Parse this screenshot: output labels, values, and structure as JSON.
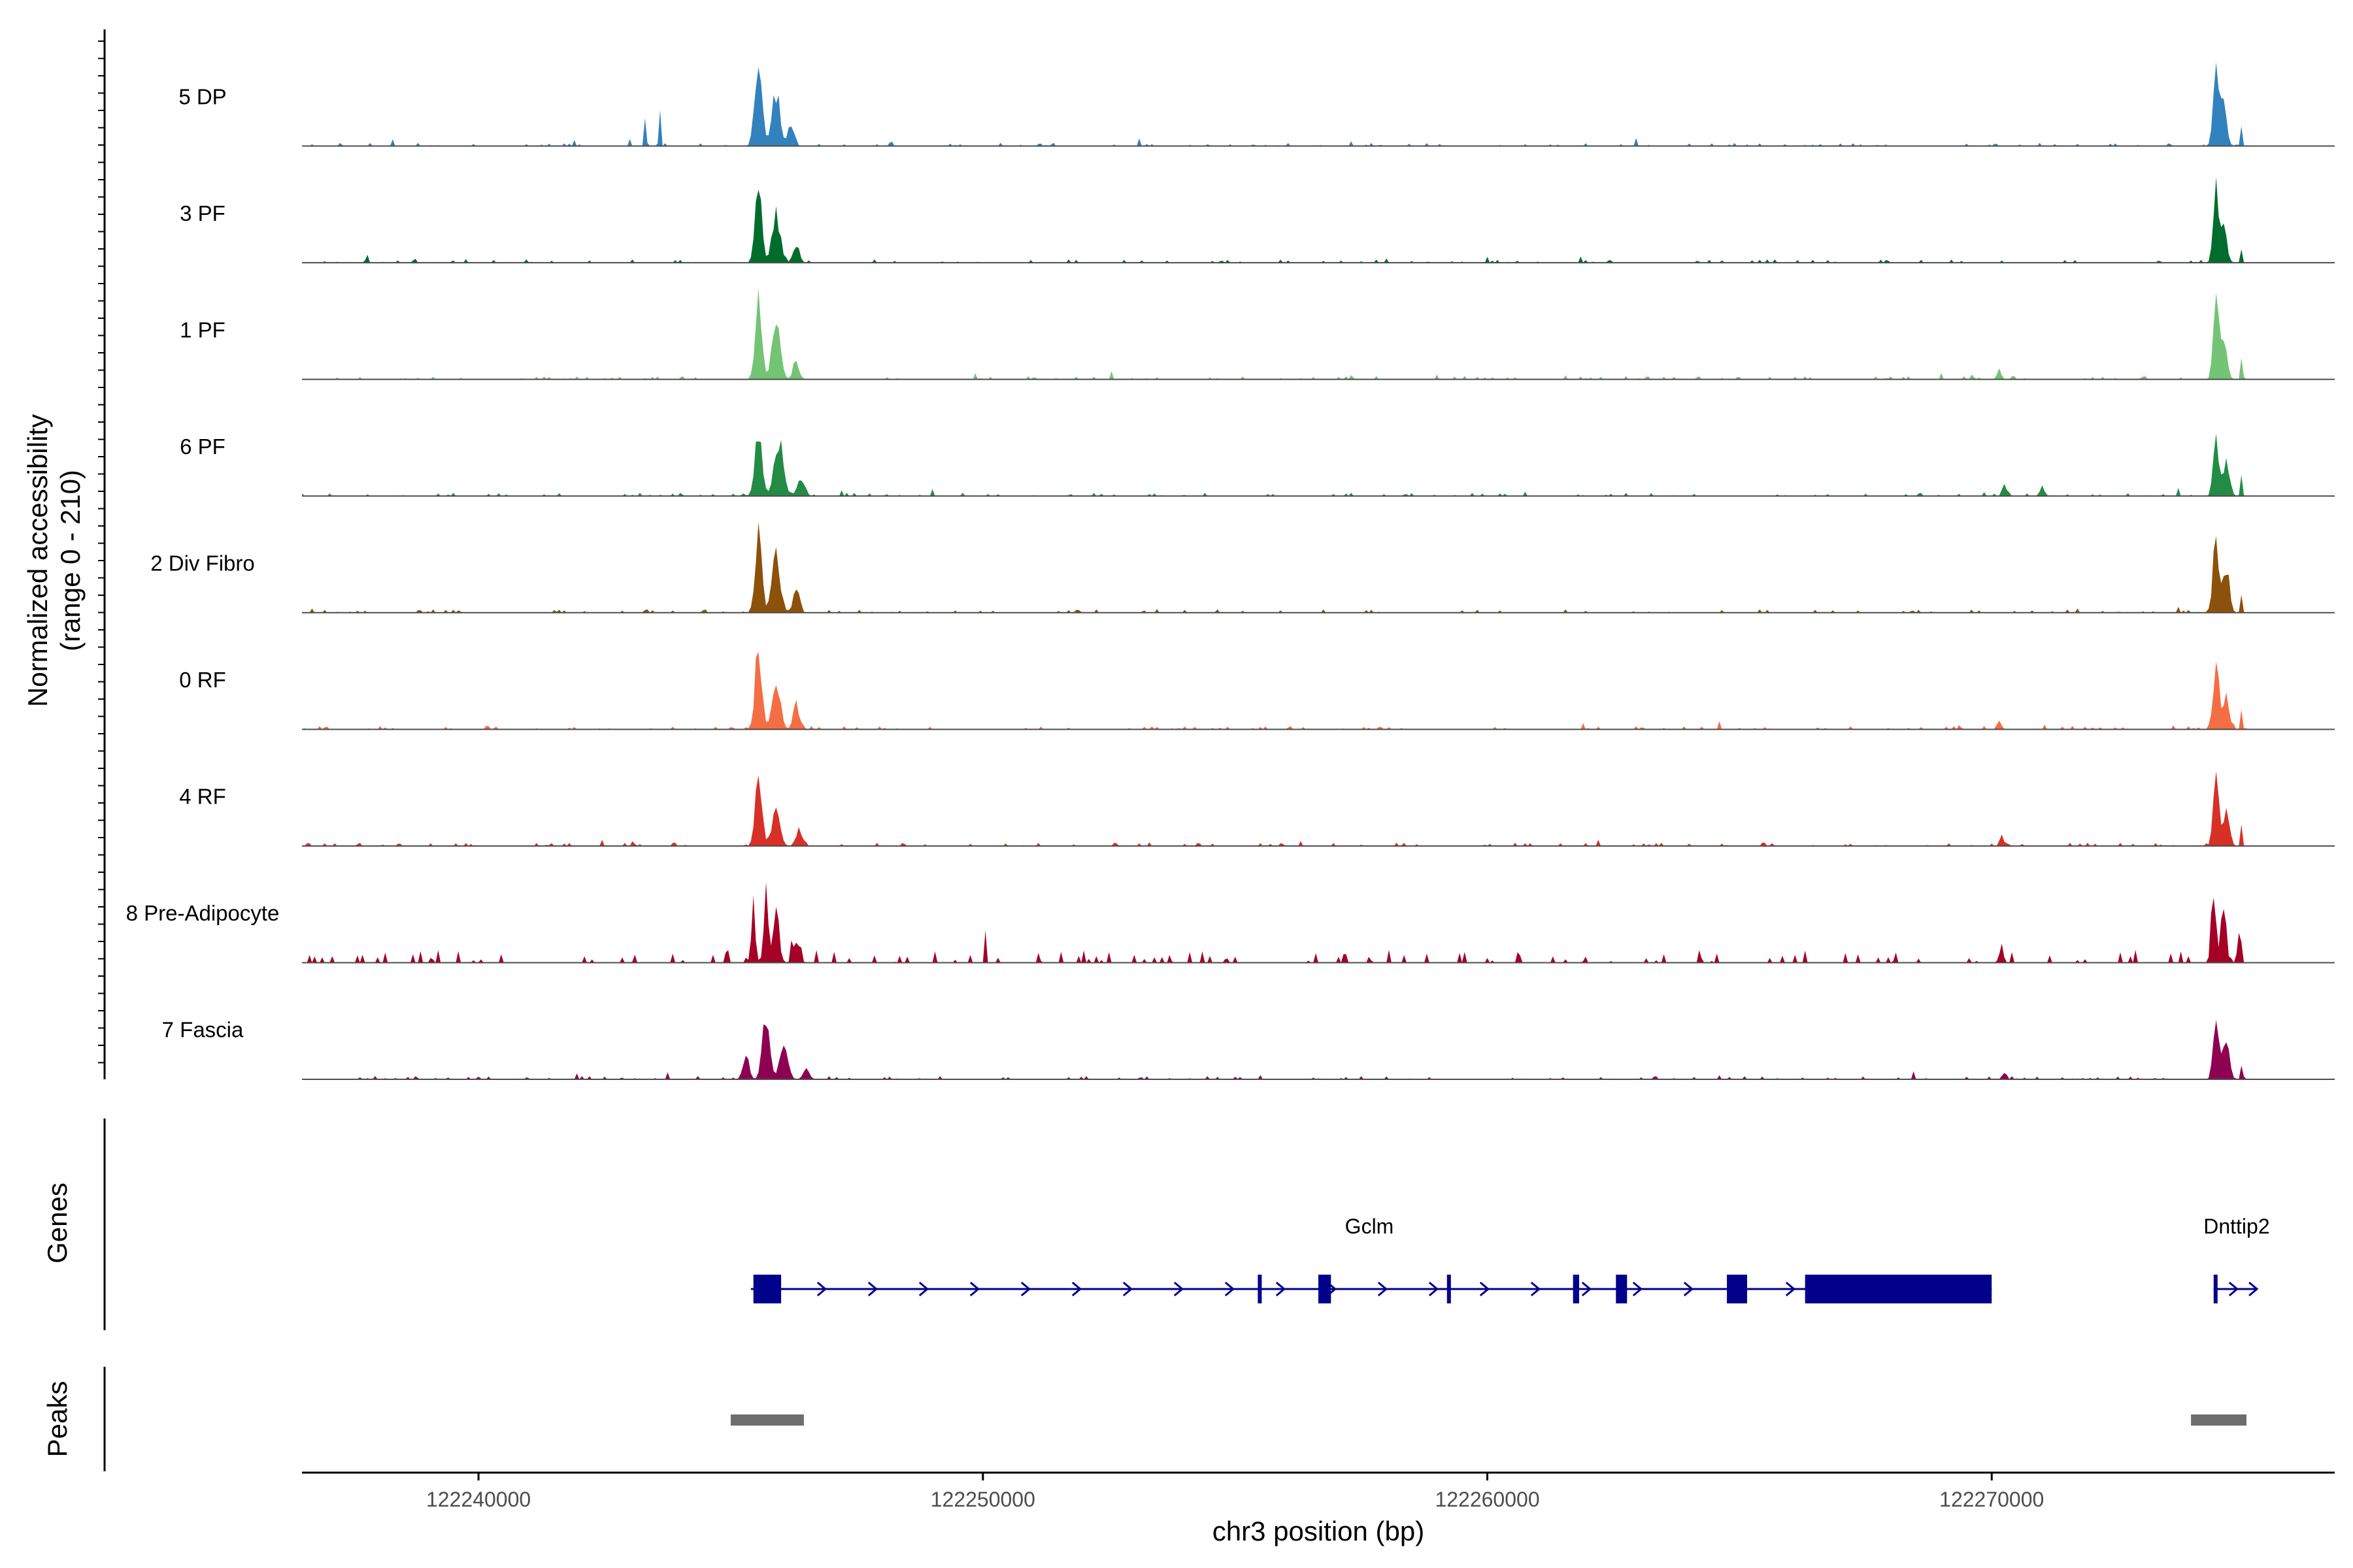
{
  "chart_data": {
    "type": "area",
    "title": "",
    "xlabel": "chr3 position (bp)",
    "ylabel_line1": "Normalized accessibility",
    "ylabel_line2": "(range 0 - 210)",
    "y_range": [
      0,
      210
    ],
    "xlim": [
      122236500,
      122276800
    ],
    "x_ticks": [
      122240000,
      122250000,
      122260000,
      122270000
    ],
    "x_tick_labels": [
      "122240000",
      "122250000",
      "122260000",
      "122270000"
    ],
    "genes_panel_label": "Genes",
    "peaks_panel_label": "Peaks",
    "tracks": [
      {
        "name": "5 DP",
        "color": "#3182bd",
        "peaks": [
          [
            122243300,
            70,
            18
          ],
          [
            122243600,
            90,
            10
          ],
          [
            122245550,
            210,
            70
          ],
          [
            122245900,
            130,
            80
          ],
          [
            122246200,
            55,
            60
          ],
          [
            122274450,
            210,
            55
          ],
          [
            122274600,
            110,
            60
          ],
          [
            122274950,
            60,
            20
          ]
        ]
      },
      {
        "name": "3 PF",
        "color": "#006d2c",
        "peaks": [
          [
            122245550,
            200,
            65
          ],
          [
            122245900,
            120,
            80
          ],
          [
            122246300,
            50,
            60
          ],
          [
            122274450,
            180,
            55
          ],
          [
            122274600,
            100,
            60
          ],
          [
            122274950,
            40,
            20
          ]
        ]
      },
      {
        "name": "1 PF",
        "color": "#74c476",
        "peaks": [
          [
            122245550,
            200,
            65
          ],
          [
            122245900,
            150,
            80
          ],
          [
            122246300,
            45,
            60
          ],
          [
            122270150,
            25,
            40
          ],
          [
            122274450,
            200,
            55
          ],
          [
            122274600,
            110,
            60
          ],
          [
            122274950,
            40,
            20
          ]
        ]
      },
      {
        "name": "6 PF",
        "color": "#238b45",
        "peaks": [
          [
            122245550,
            150,
            70
          ],
          [
            122245950,
            140,
            90
          ],
          [
            122246400,
            45,
            70
          ],
          [
            122270250,
            35,
            40
          ],
          [
            122271000,
            20,
            50
          ],
          [
            122274450,
            155,
            55
          ],
          [
            122274650,
            90,
            60
          ],
          [
            122274950,
            55,
            20
          ]
        ]
      },
      {
        "name": "2 Div Fibro",
        "color": "#8c510a",
        "peaks": [
          [
            122245550,
            200,
            65
          ],
          [
            122245900,
            140,
            80
          ],
          [
            122246300,
            60,
            60
          ],
          [
            122274450,
            200,
            55
          ],
          [
            122274650,
            110,
            60
          ],
          [
            122274950,
            50,
            20
          ]
        ]
      },
      {
        "name": "0 RF",
        "color": "#f46d43",
        "peaks": [
          [
            122245550,
            210,
            65
          ],
          [
            122245900,
            130,
            80
          ],
          [
            122246300,
            65,
            60
          ],
          [
            122270150,
            22,
            40
          ],
          [
            122274450,
            170,
            55
          ],
          [
            122274650,
            80,
            60
          ],
          [
            122274950,
            45,
            20
          ]
        ]
      },
      {
        "name": "4 RF",
        "color": "#d73027",
        "peaks": [
          [
            122245550,
            175,
            65
          ],
          [
            122245900,
            100,
            80
          ],
          [
            122246350,
            40,
            60
          ],
          [
            122270200,
            25,
            40
          ],
          [
            122274450,
            170,
            55
          ],
          [
            122274650,
            90,
            60
          ],
          [
            122274950,
            50,
            20
          ]
        ]
      },
      {
        "name": "8 Pre-Adipocyte",
        "color": "#a50026",
        "peaks": [
          [
            122245450,
            150,
            40
          ],
          [
            122245700,
            210,
            40
          ],
          [
            122245900,
            130,
            60
          ],
          [
            122246300,
            60,
            60
          ],
          [
            122270200,
            35,
            40
          ],
          [
            122274400,
            200,
            45
          ],
          [
            122274600,
            150,
            50
          ],
          [
            122274900,
            80,
            30
          ]
        ]
      },
      {
        "name": "7 Fascia",
        "color": "#8e0152",
        "peaks": [
          [
            122245300,
            60,
            60
          ],
          [
            122245700,
            160,
            70
          ],
          [
            122246050,
            80,
            80
          ],
          [
            122246500,
            30,
            60
          ],
          [
            122270250,
            20,
            40
          ],
          [
            122274450,
            180,
            55
          ],
          [
            122274650,
            100,
            60
          ],
          [
            122274950,
            40,
            20
          ]
        ]
      }
    ],
    "genes": [
      {
        "name": "Gclm",
        "start": 122245400,
        "end": 122270000,
        "strand": "+",
        "exons": [
          [
            122245450,
            122246000
          ],
          [
            122255450,
            122255520
          ],
          [
            122256650,
            122256900
          ],
          [
            122259200,
            122259270
          ],
          [
            122261700,
            122261820
          ],
          [
            122262550,
            122262770
          ],
          [
            122264750,
            122265150
          ],
          [
            122266300,
            122270000
          ]
        ]
      },
      {
        "name": "Dnttip2",
        "start": 122274400,
        "end": 122275000,
        "strand": "+",
        "exons": [
          [
            122274400,
            122274460
          ]
        ]
      }
    ],
    "peak_regions": [
      [
        122245000,
        122246450
      ],
      [
        122273950,
        122275050
      ]
    ],
    "colors": {
      "baseline": "#4d4d4d",
      "gene": "#00008b",
      "peak_region": "#6e6e6e",
      "axis": "#000000"
    }
  }
}
